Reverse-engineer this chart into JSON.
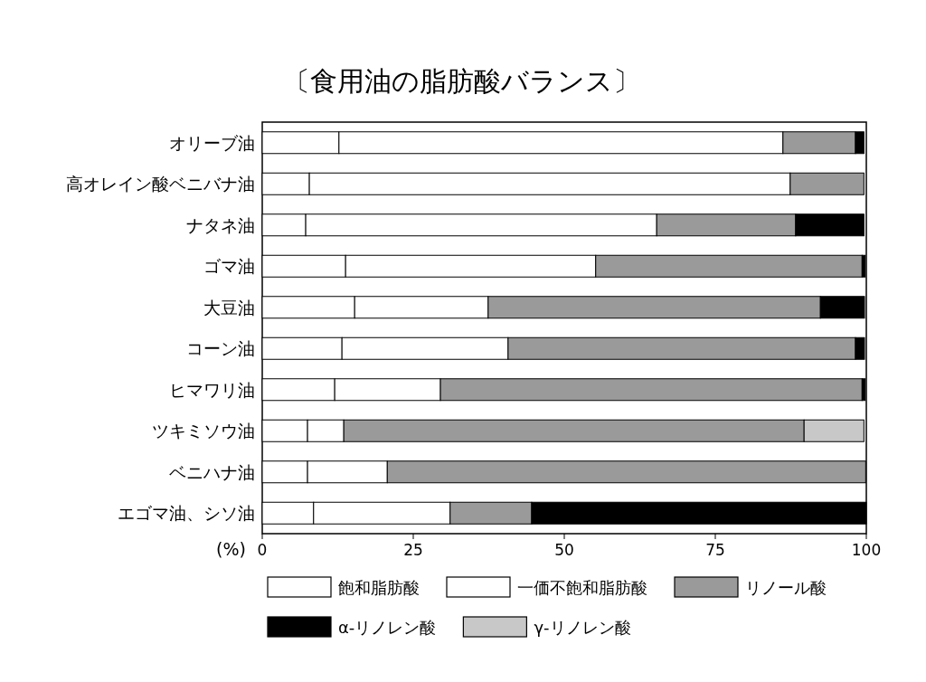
{
  "chart_data": {
    "type": "bar",
    "orientation": "horizontal",
    "stacked": true,
    "title": "〔食用油の脂肪酸バランス〕",
    "xlabel": "(%)",
    "categories": [
      "オリーブ油",
      "高オレイン酸ベニバナ油",
      "ナタネ油",
      "ゴマ油",
      "大豆油",
      "コーン油",
      "ヒマワリ油",
      "ツキミソウ油",
      "ベニハナ油",
      "エゴマ油、シソ油"
    ],
    "series": [
      {
        "name": "飽和脂肪酸",
        "color": "#ffffff",
        "values": [
          12.7,
          7.8,
          7.2,
          13.8,
          15.3,
          13.2,
          12,
          7.5,
          7.5,
          8.5
        ]
      },
      {
        "name": "一価不飽和脂肪酸",
        "color": "#ffffff",
        "values": [
          73.5,
          79.6,
          58.1,
          41.4,
          22.1,
          27.5,
          17.5,
          6,
          13.2,
          22.6
        ]
      },
      {
        "name": "リノール酸",
        "color": "#9a9a9a",
        "values": [
          12,
          12.2,
          23,
          44.1,
          55,
          57.5,
          69.8,
          76.2,
          79.2,
          13.5
        ]
      },
      {
        "name": "α-リノレン酸",
        "color": "#000000",
        "values": [
          1.4,
          null,
          11.3,
          0.5,
          7.3,
          1.5,
          0.5,
          null,
          null,
          55.4
        ]
      },
      {
        "name": "γ-リノレン酸",
        "color": "#c8c8c8",
        "values": [
          null,
          null,
          null,
          null,
          null,
          null,
          null,
          9.9,
          null,
          null
        ]
      }
    ],
    "xlim": [
      0,
      100
    ],
    "xticks": [
      0,
      25,
      50,
      75,
      100
    ],
    "grid": false,
    "legend": "bottom"
  }
}
